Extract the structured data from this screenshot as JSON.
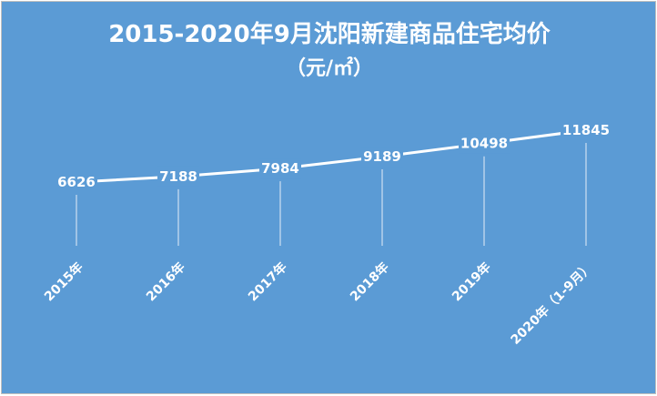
{
  "chart_data": {
    "type": "line",
    "title": "2015-2020年9月沈阳新建商品住宅均价",
    "subtitle": "（元/㎡）",
    "categories": [
      "2015年",
      "2016年",
      "2017年",
      "2018年",
      "2019年",
      "2020年（1-9月）"
    ],
    "series": [
      {
        "values": [
          6626,
          7188,
          7984,
          9189,
          10498,
          11845
        ]
      }
    ],
    "data_labels": [
      "6626",
      "7188",
      "7984",
      "9189",
      "10498",
      "11845"
    ],
    "xlabel": "",
    "ylabel": "",
    "grid": false,
    "legend": "none",
    "colors": {
      "background": "#5b9bd5",
      "line": "#ffffff",
      "text": "#ffffff"
    }
  }
}
